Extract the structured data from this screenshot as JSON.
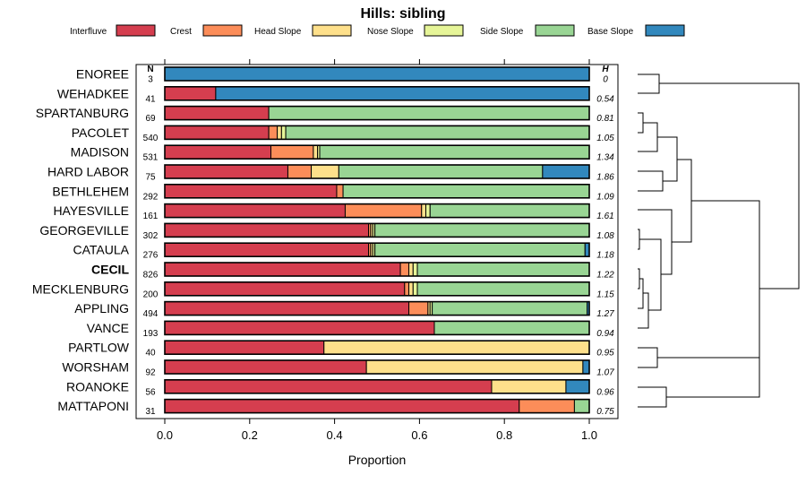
{
  "chart_data": {
    "type": "bar",
    "orientation": "horizontal",
    "stacked": true,
    "title": "Hills: sibling",
    "xlabel": "Proportion",
    "ylabel": "",
    "xlim": [
      0,
      1
    ],
    "xticks": [
      "0.0",
      "0.2",
      "0.4",
      "0.6",
      "0.8",
      "1.0"
    ],
    "n_header": "N",
    "h_header": "H",
    "highlight": "CECIL",
    "legend": [
      {
        "name": "Interfluve",
        "color": "#d53e4f"
      },
      {
        "name": "Crest",
        "color": "#fc8d59"
      },
      {
        "name": "Head Slope",
        "color": "#fee08b"
      },
      {
        "name": "Nose Slope",
        "color": "#e6f598"
      },
      {
        "name": "Side Slope",
        "color": "#99d594"
      },
      {
        "name": "Base Slope",
        "color": "#3288bd"
      }
    ],
    "rows": [
      {
        "name": "ENOREE",
        "n": "3",
        "h": "0",
        "values": [
          0,
          0,
          0,
          0,
          0,
          1.0
        ]
      },
      {
        "name": "WEHADKEE",
        "n": "41",
        "h": "0.54",
        "values": [
          0.12,
          0,
          0,
          0,
          0,
          0.88
        ]
      },
      {
        "name": "SPARTANBURG",
        "n": "69",
        "h": "0.81",
        "values": [
          0.245,
          0,
          0,
          0,
          0.755,
          0
        ]
      },
      {
        "name": "PACOLET",
        "n": "540",
        "h": "1.05",
        "values": [
          0.245,
          0.02,
          0.01,
          0.01,
          0.715,
          0
        ]
      },
      {
        "name": "MADISON",
        "n": "531",
        "h": "1.34",
        "values": [
          0.25,
          0.1,
          0.01,
          0.005,
          0.635,
          0
        ]
      },
      {
        "name": "HARD LABOR",
        "n": "75",
        "h": "1.86",
        "values": [
          0.29,
          0.055,
          0.065,
          0,
          0.48,
          0.11
        ]
      },
      {
        "name": "BETHLEHEM",
        "n": "292",
        "h": "1.09",
        "values": [
          0.405,
          0.015,
          0,
          0,
          0.58,
          0
        ]
      },
      {
        "name": "HAYESVILLE",
        "n": "161",
        "h": "1.61",
        "values": [
          0.425,
          0.18,
          0.01,
          0.01,
          0.375,
          0
        ]
      },
      {
        "name": "GEORGEVILLE",
        "n": "302",
        "h": "1.08",
        "values": [
          0.48,
          0.005,
          0.005,
          0.005,
          0.505,
          0
        ]
      },
      {
        "name": "CATAULA",
        "n": "276",
        "h": "1.18",
        "values": [
          0.48,
          0.005,
          0.005,
          0.005,
          0.495,
          0.01
        ]
      },
      {
        "name": "CECIL",
        "n": "826",
        "h": "1.22",
        "values": [
          0.555,
          0.02,
          0.01,
          0.01,
          0.405,
          0
        ]
      },
      {
        "name": "MECKLENBURG",
        "n": "200",
        "h": "1.15",
        "values": [
          0.565,
          0.01,
          0.01,
          0.01,
          0.405,
          0
        ]
      },
      {
        "name": "APPLING",
        "n": "494",
        "h": "1.27",
        "values": [
          0.575,
          0.045,
          0.005,
          0.005,
          0.365,
          0.005
        ]
      },
      {
        "name": "VANCE",
        "n": "193",
        "h": "0.94",
        "values": [
          0.635,
          0,
          0,
          0,
          0.365,
          0
        ]
      },
      {
        "name": "PARTLOW",
        "n": "40",
        "h": "0.95",
        "values": [
          0.375,
          0,
          0.625,
          0,
          0,
          0
        ]
      },
      {
        "name": "WORSHAM",
        "n": "92",
        "h": "1.07",
        "values": [
          0.475,
          0,
          0.51,
          0,
          0,
          0.015
        ]
      },
      {
        "name": "ROANOKE",
        "n": "56",
        "h": "0.96",
        "values": [
          0.77,
          0,
          0.175,
          0,
          0,
          0.055
        ]
      },
      {
        "name": "MATTAPONI",
        "n": "31",
        "h": "0.75",
        "values": [
          0.835,
          0.13,
          0,
          0,
          0.035,
          0
        ]
      }
    ]
  }
}
